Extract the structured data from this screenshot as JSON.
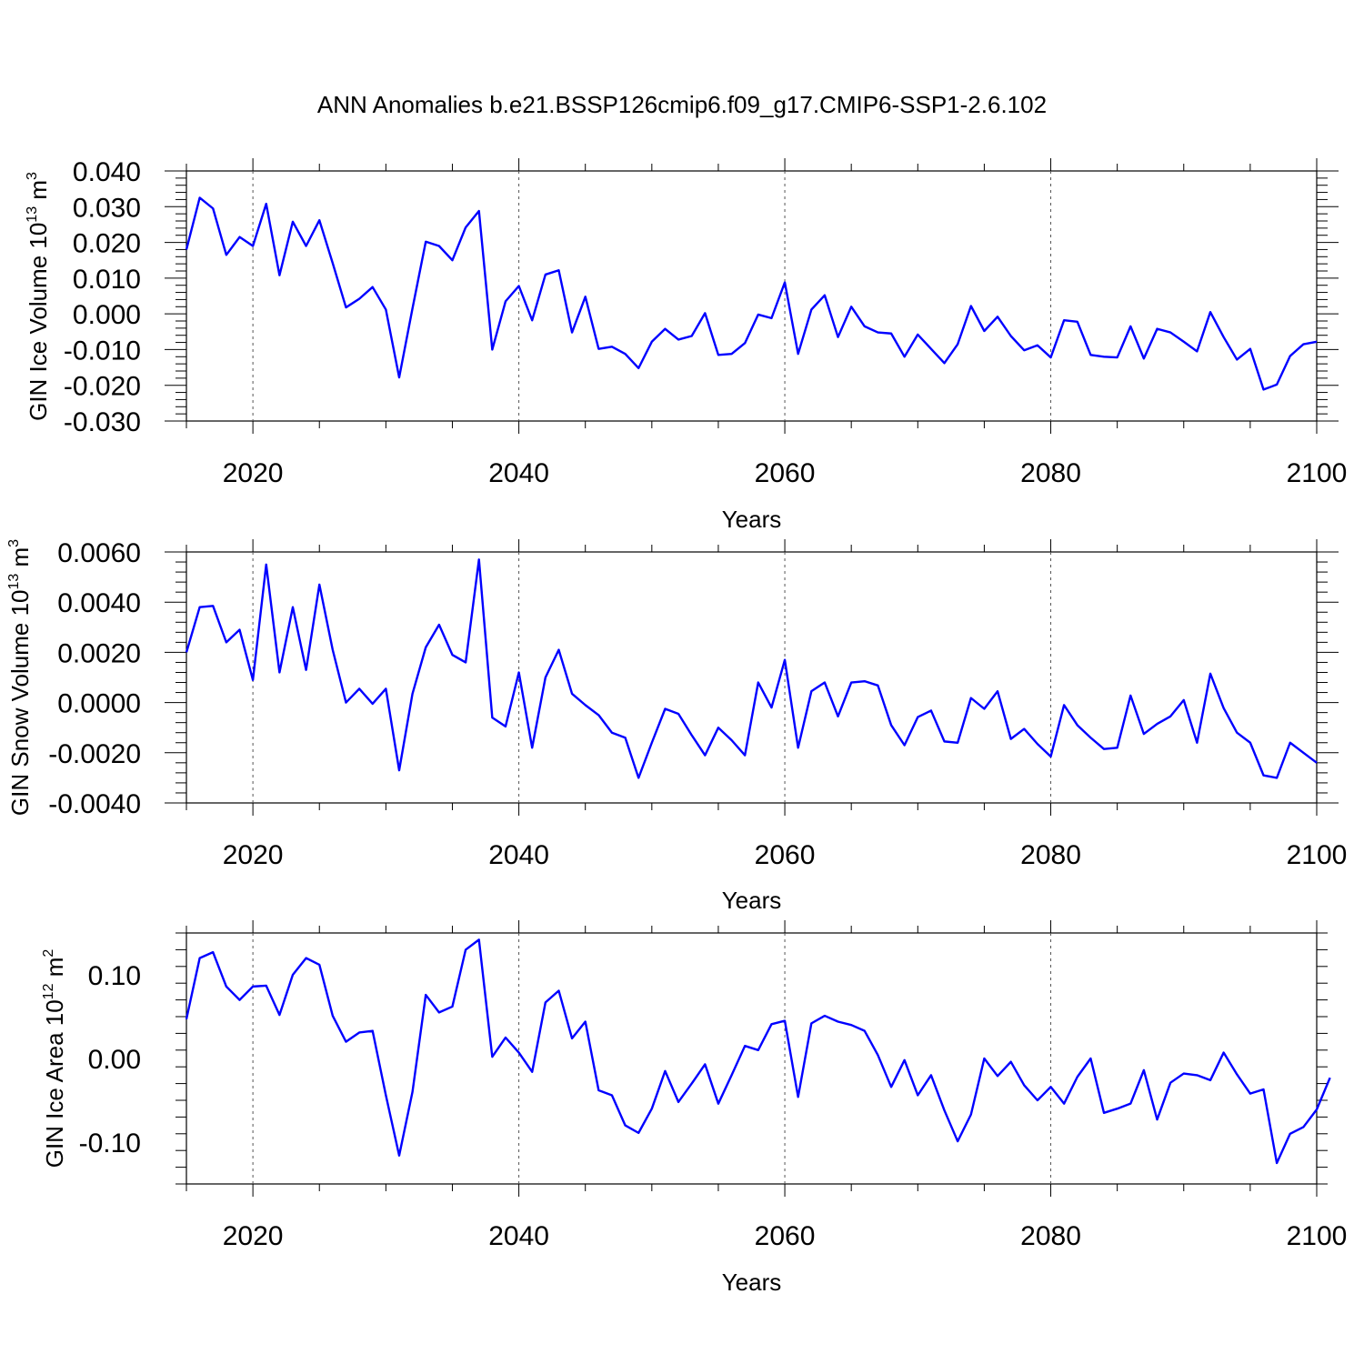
{
  "title": "ANN Anomalies b.e21.BSSP126cmip6.f09_g17.CMIP6-SSP1-2.6.102",
  "colors": {
    "line": "#0000ff",
    "axis": "#000000",
    "grid": "#555555"
  },
  "chart_data": [
    {
      "type": "line",
      "ylabel": {
        "text": "GIN Ice Volume 10",
        "exp": "13",
        "unit": " m",
        "unit_exp": "3"
      },
      "xlabel": "Years",
      "xlim": [
        2015,
        2100
      ],
      "ylim": [
        -0.03,
        0.04
      ],
      "xticks": [
        2020,
        2040,
        2060,
        2080,
        2100
      ],
      "xtick_labels": [
        "2020",
        "2040",
        "2060",
        "2080",
        "2100"
      ],
      "yticks": [
        -0.03,
        -0.02,
        -0.01,
        0.0,
        0.01,
        0.02,
        0.03,
        0.04
      ],
      "ytick_labels": [
        "-0.030",
        "-0.020",
        "-0.010",
        "0.000",
        "0.010",
        "0.020",
        "0.030",
        "0.040"
      ],
      "x_start": 2015,
      "values": [
        0.018,
        0.0325,
        0.0295,
        0.0165,
        0.0215,
        0.019,
        0.0308,
        0.0108,
        0.0258,
        0.019,
        0.0262,
        0.0142,
        0.0018,
        0.0042,
        0.0075,
        0.0012,
        -0.0178,
        0.0015,
        0.0202,
        0.019,
        0.015,
        0.0242,
        0.0288,
        -0.01,
        0.0035,
        0.0078,
        -0.0018,
        0.011,
        0.0122,
        -0.0052,
        0.0048,
        -0.0098,
        -0.0092,
        -0.0112,
        -0.0152,
        -0.0078,
        -0.0042,
        -0.0072,
        -0.0062,
        0.0002,
        -0.0115,
        -0.0112,
        -0.0082,
        -0.0002,
        -0.0012,
        0.0088,
        -0.0112,
        0.0012,
        0.0052,
        -0.0065,
        0.002,
        -0.0035,
        -0.0052,
        -0.0055,
        -0.012,
        -0.0058,
        -0.0098,
        -0.0138,
        -0.0085,
        0.0022,
        -0.0048,
        -0.0008,
        -0.0062,
        -0.0102,
        -0.0088,
        -0.0122,
        -0.0018,
        -0.0022,
        -0.0115,
        -0.012,
        -0.0122,
        -0.0035,
        -0.0125,
        -0.0042,
        -0.0052,
        -0.0078,
        -0.0105,
        0.0005,
        -0.0065,
        -0.0128,
        -0.0098,
        -0.0212,
        -0.0198,
        -0.0118,
        -0.0085,
        -0.0078
      ]
    },
    {
      "type": "line",
      "ylabel": {
        "text": "GIN Snow Volume 10",
        "exp": "13",
        "unit": " m",
        "unit_exp": "3"
      },
      "xlabel": "Years",
      "xlim": [
        2015,
        2100
      ],
      "ylim": [
        -0.004,
        0.006
      ],
      "xticks": [
        2020,
        2040,
        2060,
        2080,
        2100
      ],
      "xtick_labels": [
        "2020",
        "2040",
        "2060",
        "2080",
        "2100"
      ],
      "yticks": [
        -0.004,
        -0.002,
        0.0,
        0.002,
        0.004,
        0.006
      ],
      "ytick_labels": [
        "-0.0040",
        "-0.0020",
        "0.0000",
        "0.0020",
        "0.0040",
        "0.0060"
      ],
      "x_start": 2015,
      "values": [
        0.002,
        0.0038,
        0.00385,
        0.0024,
        0.0029,
        0.0009,
        0.0055,
        0.0012,
        0.0038,
        0.0013,
        0.0047,
        0.0021,
        0.0,
        0.00055,
        -5e-05,
        0.00055,
        -0.0027,
        0.00035,
        0.0022,
        0.0031,
        0.0019,
        0.0016,
        0.0057,
        -0.0006,
        -0.00095,
        0.0012,
        -0.0018,
        0.001,
        0.0021,
        0.00035,
        -0.0001,
        -0.0005,
        -0.0012,
        -0.0014,
        -0.003,
        -0.0016,
        -0.00025,
        -0.00045,
        -0.0013,
        -0.0021,
        -0.001,
        -0.0015,
        -0.0021,
        0.0008,
        -0.0002,
        0.0017,
        -0.0018,
        0.00045,
        0.0008,
        -0.00055,
        0.0008,
        0.00085,
        0.00068,
        -0.0009,
        -0.0017,
        -0.00058,
        -0.00032,
        -0.00155,
        -0.0016,
        0.00018,
        -0.00025,
        0.00045,
        -0.00145,
        -0.00105,
        -0.00165,
        -0.00215,
        -0.0001,
        -0.0009,
        -0.0014,
        -0.00185,
        -0.0018,
        0.00028,
        -0.00125,
        -0.00085,
        -0.00055,
        0.0001,
        -0.0016,
        0.00115,
        -0.00022,
        -0.0012,
        -0.0016,
        -0.0029,
        -0.003,
        -0.0016,
        -0.002,
        -0.0024
      ]
    },
    {
      "type": "line",
      "ylabel": {
        "text": "GIN Ice Area 10",
        "exp": "12",
        "unit": " m",
        "unit_exp": "2"
      },
      "xlabel": "Years",
      "xlim": [
        2015,
        2100
      ],
      "ylim": [
        -0.15,
        0.15
      ],
      "xticks": [
        2020,
        2040,
        2060,
        2080,
        2100
      ],
      "xtick_labels": [
        "2020",
        "2040",
        "2060",
        "2080",
        "2100"
      ],
      "yticks": [
        -0.1,
        0.0,
        0.1
      ],
      "ytick_labels": [
        "-0.10",
        "0.00",
        "0.10"
      ],
      "x_start": 2015,
      "values": [
        0.047,
        0.12,
        0.127,
        0.086,
        0.07,
        0.086,
        0.087,
        0.052,
        0.1,
        0.12,
        0.112,
        0.051,
        0.02,
        0.031,
        0.033,
        -0.044,
        -0.116,
        -0.04,
        0.076,
        0.055,
        0.062,
        0.13,
        0.142,
        0.002,
        0.025,
        0.007,
        -0.016,
        0.067,
        0.081,
        0.024,
        0.044,
        -0.038,
        -0.044,
        -0.08,
        -0.089,
        -0.06,
        -0.015,
        -0.052,
        -0.03,
        -0.007,
        -0.054,
        -0.02,
        0.015,
        0.01,
        0.041,
        0.045,
        -0.046,
        0.042,
        0.051,
        0.044,
        0.04,
        0.033,
        0.004,
        -0.034,
        -0.002,
        -0.044,
        -0.02,
        -0.062,
        -0.099,
        -0.067,
        0.0,
        -0.021,
        -0.004,
        -0.032,
        -0.05,
        -0.034,
        -0.054,
        -0.022,
        0.0,
        -0.065,
        -0.06,
        -0.054,
        -0.014,
        -0.073,
        -0.029,
        -0.018,
        -0.02,
        -0.026,
        0.007,
        -0.019,
        -0.042,
        -0.037,
        -0.125,
        -0.09,
        -0.082,
        -0.061,
        -0.023
      ]
    }
  ]
}
